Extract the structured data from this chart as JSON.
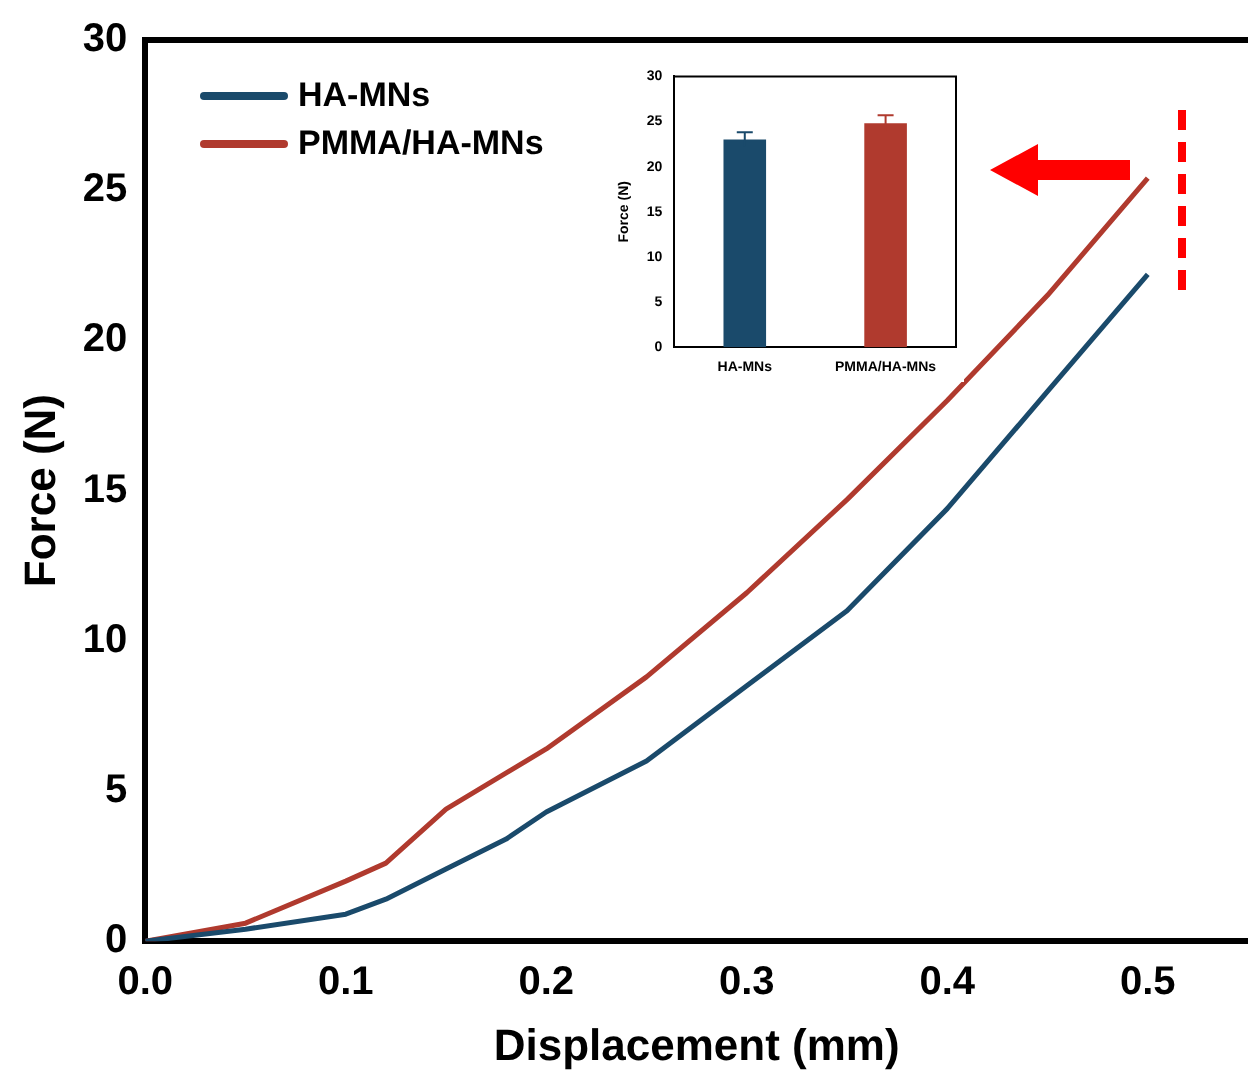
{
  "chart_data": [
    {
      "type": "line",
      "xlabel": "Displacement (mm)",
      "ylabel": "Force (N)",
      "xlim": [
        0,
        0.55
      ],
      "xticks": [
        {
          "value": 0,
          "label": "0.0"
        },
        {
          "value": 0.1,
          "label": "0.1"
        },
        {
          "value": 0.2,
          "label": "0.2"
        },
        {
          "value": 0.3,
          "label": "0.3"
        },
        {
          "value": 0.4,
          "label": "0.4"
        },
        {
          "value": 0.5,
          "label": "0.5"
        }
      ],
      "ylim": [
        0,
        30
      ],
      "yticks": [
        0,
        5,
        10,
        15,
        20,
        25,
        30
      ],
      "legend": "top left",
      "grid": false,
      "marker": "none",
      "line_style": "solid",
      "series": [
        {
          "name": "HA-MNs",
          "color": "#1a4a6b",
          "x": [
            0,
            0.05,
            0.1,
            0.12,
            0.15,
            0.18,
            0.2,
            0.25,
            0.3,
            0.35,
            0.4,
            0.45,
            0.5
          ],
          "values": [
            0,
            0.4,
            0.9,
            1.4,
            2.4,
            3.4,
            4.3,
            6.0,
            8.5,
            11.0,
            14.4,
            18.3,
            22.2
          ]
        },
        {
          "name": "PMMA/HA-MNs",
          "color": "#b03a2e",
          "x": [
            0,
            0.05,
            0.1,
            0.12,
            0.15,
            0.2,
            0.25,
            0.3,
            0.35,
            0.4,
            0.45,
            0.5
          ],
          "values": [
            0,
            0.6,
            2.0,
            2.6,
            4.4,
            6.4,
            8.8,
            11.6,
            14.7,
            18.0,
            21.5,
            25.4
          ]
        }
      ]
    },
    {
      "type": "bar",
      "ylabel": "Force (N)",
      "categories": [
        "HA-MNs",
        "PMMA/HA-MNs"
      ],
      "values": [
        23.0,
        24.8
      ],
      "errors": [
        0.8,
        0.9
      ],
      "colors": [
        "#1a4a6b",
        "#b03a2e"
      ],
      "ylim": [
        0,
        30
      ],
      "yticks": [
        0,
        5,
        10,
        15,
        20,
        25,
        30
      ],
      "grid": false,
      "legend": false
    }
  ]
}
